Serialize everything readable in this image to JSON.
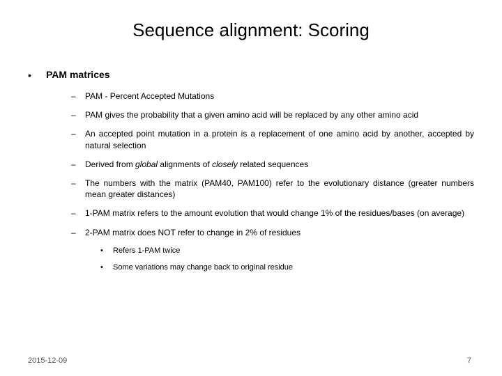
{
  "title": "Sequence alignment: Scoring",
  "heading": "PAM matrices",
  "points": [
    "PAM - Percent Accepted Mutations",
    "PAM gives the probability that a given amino acid will be replaced by any other amino acid",
    "An accepted point mutation in a protein is a replacement of one amino acid by another, accepted by natural selection",
    "",
    "The numbers with the matrix (PAM40, PAM100) refer to the evolutionary distance (greater numbers mean greater distances)",
    "1-PAM matrix refers to the amount evolution that would change 1% of the residues/bases (on average)",
    "2-PAM matrix does NOT refer to change in 2% of residues"
  ],
  "point4_pre": "Derived from ",
  "point4_global": "global",
  "point4_mid": " alignments of ",
  "point4_closely": "closely",
  "point4_post": " related sequences",
  "subpoints": [
    "Refers 1-PAM twice",
    "Some variations may change back to original residue"
  ],
  "date": "2015-12-09",
  "page": "7"
}
